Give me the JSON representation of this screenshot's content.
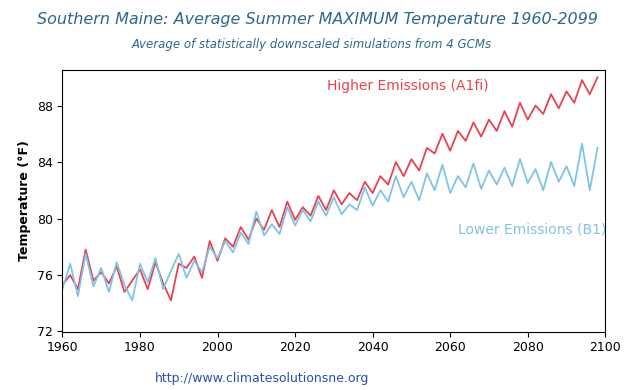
{
  "chart_data": {
    "type": "line",
    "title": "Southern Maine: Average Summer MAXIMUM Temperature 1960-2099",
    "subtitle": "Average of statistically downscaled simulations from 4 GCMs",
    "ylabel": "Temperature (°F)",
    "annotations": [
      "http://www.climatesolutionsne.org"
    ],
    "x": [
      1960,
      1962,
      1964,
      1966,
      1968,
      1970,
      1972,
      1974,
      1976,
      1978,
      1980,
      1982,
      1984,
      1986,
      1988,
      1990,
      1992,
      1994,
      1996,
      1998,
      2000,
      2002,
      2004,
      2006,
      2008,
      2010,
      2012,
      2014,
      2016,
      2018,
      2020,
      2022,
      2024,
      2026,
      2028,
      2030,
      2032,
      2034,
      2036,
      2038,
      2040,
      2042,
      2044,
      2046,
      2048,
      2050,
      2052,
      2054,
      2056,
      2058,
      2060,
      2062,
      2064,
      2066,
      2068,
      2070,
      2072,
      2074,
      2076,
      2078,
      2080,
      2082,
      2084,
      2086,
      2088,
      2090,
      2092,
      2094,
      2096,
      2098
    ],
    "series": [
      {
        "name": "Higher Emissions (A1fi)",
        "color": "#e8434f",
        "values": [
          75.3,
          76.0,
          75.0,
          77.8,
          75.6,
          76.2,
          75.4,
          76.6,
          74.8,
          75.6,
          76.4,
          75.0,
          76.9,
          75.4,
          74.2,
          76.8,
          76.5,
          77.3,
          75.8,
          78.4,
          77.0,
          78.6,
          78.0,
          79.4,
          78.5,
          80.0,
          79.2,
          80.6,
          79.4,
          81.2,
          79.9,
          80.8,
          80.2,
          81.6,
          80.6,
          82.0,
          81.0,
          81.8,
          81.3,
          82.6,
          81.8,
          83.0,
          82.4,
          84.0,
          83.0,
          84.2,
          83.4,
          85.0,
          84.6,
          86.0,
          84.8,
          86.2,
          85.5,
          86.8,
          85.8,
          87.0,
          86.2,
          87.6,
          86.5,
          88.2,
          87.0,
          88.0,
          87.4,
          88.8,
          87.8,
          89.0,
          88.2,
          89.8,
          88.8,
          90.0
        ]
      },
      {
        "name": "Lower Emissions (B1)",
        "color": "#7fc4e8",
        "values": [
          75.0,
          76.8,
          74.5,
          77.5,
          75.2,
          76.5,
          74.8,
          76.9,
          75.3,
          74.2,
          76.8,
          75.5,
          77.2,
          75.0,
          76.3,
          77.5,
          75.8,
          77.0,
          76.2,
          78.0,
          77.2,
          78.4,
          77.6,
          79.0,
          78.2,
          80.5,
          78.8,
          79.6,
          78.9,
          80.8,
          79.5,
          80.6,
          79.8,
          81.2,
          80.2,
          81.5,
          80.3,
          81.0,
          80.6,
          82.2,
          80.9,
          82.0,
          81.2,
          83.0,
          81.5,
          82.6,
          81.3,
          83.2,
          82.0,
          83.8,
          81.8,
          83.0,
          82.2,
          83.9,
          82.1,
          83.4,
          82.4,
          83.6,
          82.3,
          84.2,
          82.5,
          83.5,
          82.0,
          84.0,
          82.6,
          83.7,
          82.3,
          85.3,
          82.0,
          85.0
        ]
      }
    ],
    "xlim": [
      1960,
      2100
    ],
    "xticks": [
      1960,
      1980,
      2000,
      2020,
      2040,
      2060,
      2080,
      2100
    ],
    "ylim": [
      72,
      90.5
    ],
    "yticks": [
      72,
      76,
      80,
      84,
      88
    ]
  }
}
